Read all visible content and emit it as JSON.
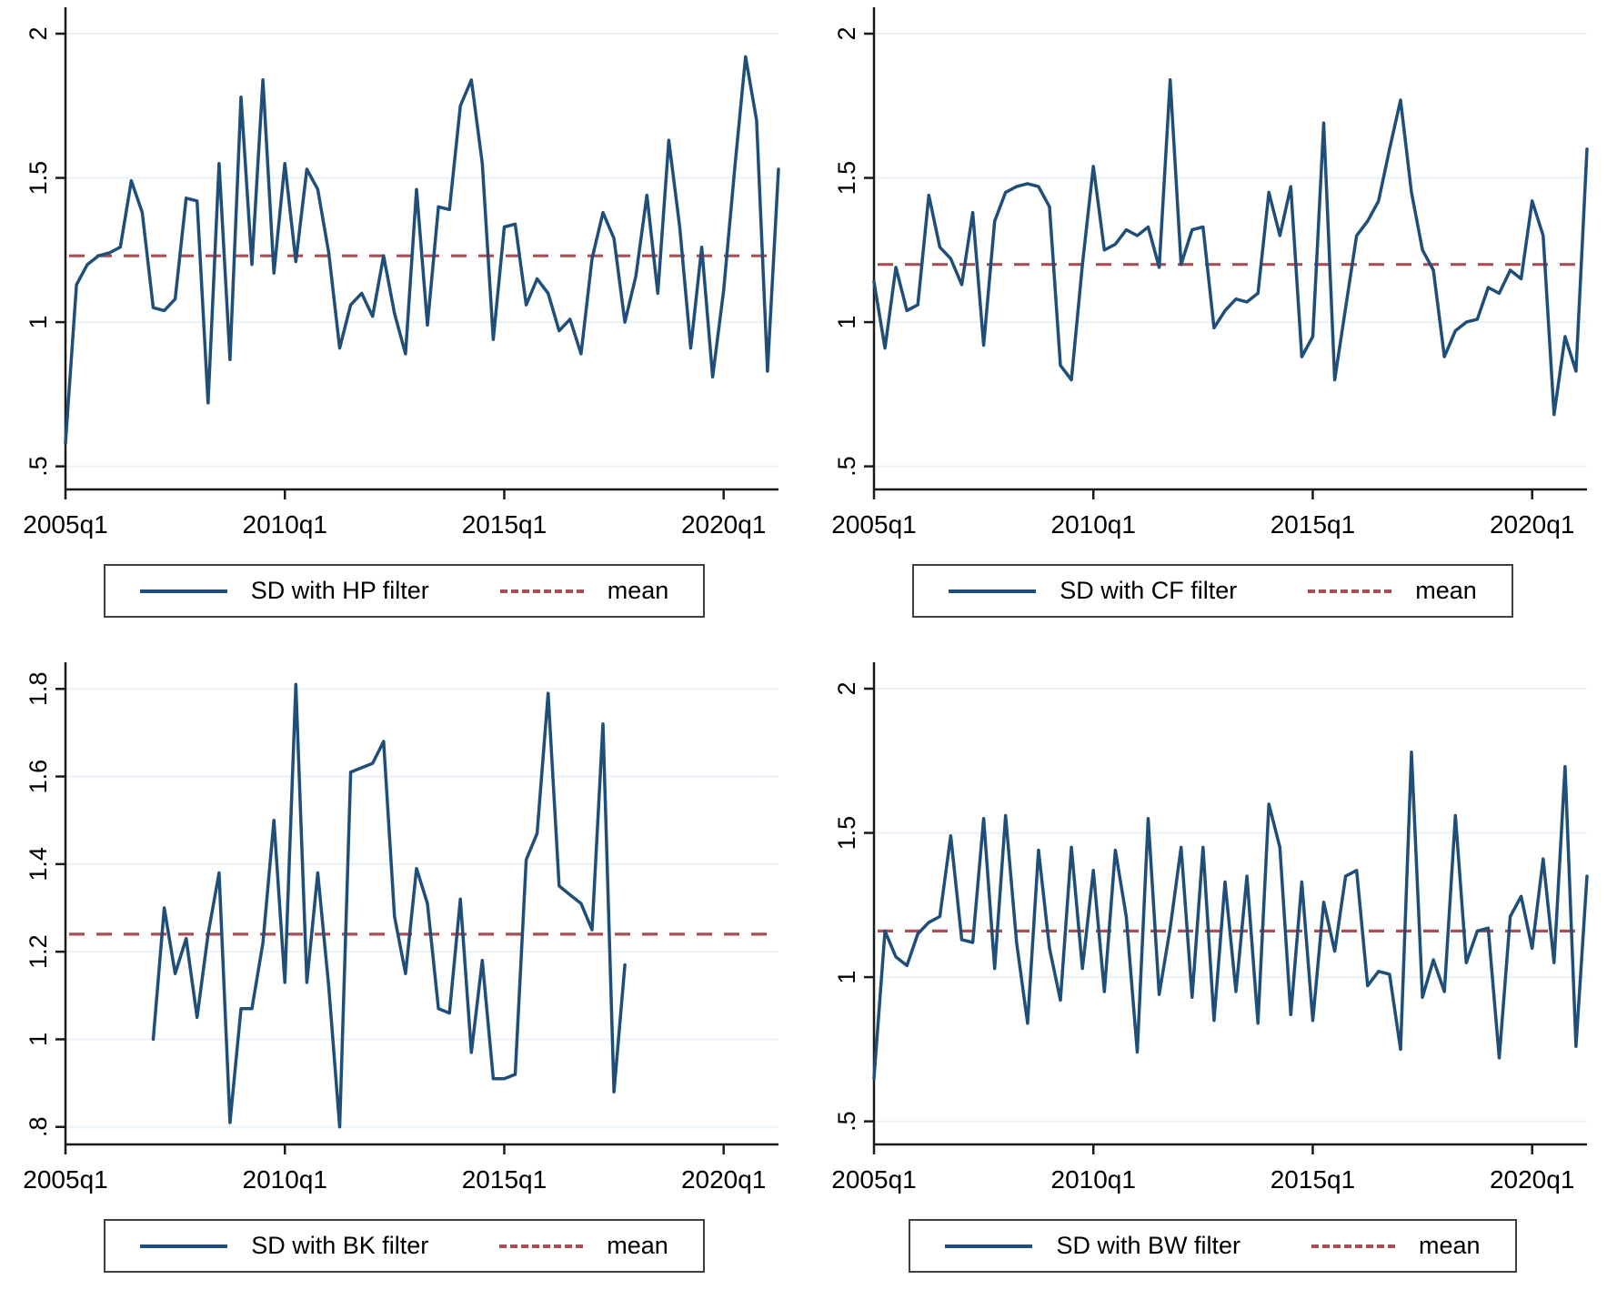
{
  "figure": {
    "background": "#ffffff"
  },
  "colors": {
    "series_line": "#1f4e79",
    "mean_line": "#ab4e54",
    "gridline": "#e9f2f8",
    "axis": "#1a1a1a",
    "tick_text": "#000000",
    "legend_border": "#404040"
  },
  "chart_data": [
    {
      "type": "line",
      "id": "sd-hp-filter",
      "series_label": "SD with HP filter",
      "mean_label": "mean",
      "mean": 1.23,
      "x_tick_labels": [
        "2005q1",
        "2010q1",
        "2015q1",
        "2020q1"
      ],
      "x_tick_quarters": [
        0,
        20,
        40,
        60
      ],
      "x_domain": [
        0,
        65
      ],
      "x_start_quarter": 0,
      "y_ticks": [
        0.5,
        1,
        1.5,
        2
      ],
      "y_tick_labels": [
        ".5",
        "1",
        "1.5",
        "2"
      ],
      "ylim": [
        0.42,
        2.06
      ],
      "values": [
        0.58,
        1.13,
        1.2,
        1.23,
        1.24,
        1.26,
        1.49,
        1.38,
        1.05,
        1.04,
        1.08,
        1.43,
        1.42,
        0.72,
        1.55,
        0.87,
        1.78,
        1.2,
        1.84,
        1.17,
        1.55,
        1.21,
        1.53,
        1.46,
        1.24,
        0.91,
        1.06,
        1.1,
        1.02,
        1.23,
        1.03,
        0.89,
        1.46,
        0.99,
        1.4,
        1.39,
        1.75,
        1.84,
        1.55,
        0.94,
        1.33,
        1.34,
        1.06,
        1.15,
        1.1,
        0.97,
        1.01,
        0.89,
        1.22,
        1.38,
        1.29,
        1.0,
        1.16,
        1.44,
        1.1,
        1.63,
        1.33,
        0.91,
        1.26,
        0.81,
        1.11,
        1.53,
        1.92,
        1.7,
        0.83,
        1.53
      ]
    },
    {
      "type": "line",
      "id": "sd-cf-filter",
      "series_label": "SD with CF filter",
      "mean_label": "mean",
      "mean": 1.2,
      "x_tick_labels": [
        "2005q1",
        "2010q1",
        "2015q1",
        "2020q1"
      ],
      "x_tick_quarters": [
        0,
        20,
        40,
        60
      ],
      "x_domain": [
        0,
        65
      ],
      "x_start_quarter": 0,
      "y_ticks": [
        0.5,
        1,
        1.5,
        2
      ],
      "y_tick_labels": [
        ".5",
        "1",
        "1.5",
        "2"
      ],
      "ylim": [
        0.42,
        2.06
      ],
      "values": [
        1.14,
        0.91,
        1.19,
        1.04,
        1.06,
        1.44,
        1.26,
        1.22,
        1.13,
        1.38,
        0.92,
        1.35,
        1.45,
        1.47,
        1.48,
        1.47,
        1.4,
        0.85,
        0.8,
        1.2,
        1.54,
        1.25,
        1.27,
        1.32,
        1.3,
        1.33,
        1.19,
        1.84,
        1.2,
        1.32,
        1.33,
        0.98,
        1.04,
        1.08,
        1.07,
        1.1,
        1.45,
        1.3,
        1.47,
        0.88,
        0.95,
        1.69,
        0.8,
        1.05,
        1.3,
        1.35,
        1.42,
        1.6,
        1.77,
        1.45,
        1.25,
        1.18,
        0.88,
        0.97,
        1.0,
        1.01,
        1.12,
        1.1,
        1.18,
        1.15,
        1.42,
        1.3,
        0.68,
        0.95,
        0.83,
        1.6
      ]
    },
    {
      "type": "line",
      "id": "sd-bk-filter",
      "series_label": "SD with BK filter",
      "mean_label": "mean",
      "mean": 1.24,
      "x_tick_labels": [
        "2005q1",
        "2010q1",
        "2015q1",
        "2020q1"
      ],
      "x_tick_quarters": [
        0,
        20,
        40,
        60
      ],
      "x_domain": [
        0,
        65
      ],
      "x_start_quarter": 8,
      "y_ticks": [
        0.8,
        1,
        1.2,
        1.4,
        1.6,
        1.8
      ],
      "y_tick_labels": [
        ".8",
        "1",
        "1.2",
        "1.4",
        "1.6",
        "1.8"
      ],
      "ylim": [
        0.76,
        1.84
      ],
      "values": [
        1.0,
        1.3,
        1.15,
        1.23,
        1.05,
        1.24,
        1.38,
        0.81,
        1.07,
        1.07,
        1.22,
        1.5,
        1.13,
        1.81,
        1.13,
        1.38,
        1.12,
        0.8,
        1.61,
        1.62,
        1.63,
        1.68,
        1.28,
        1.15,
        1.39,
        1.31,
        1.07,
        1.06,
        1.32,
        0.97,
        1.18,
        0.91,
        0.91,
        0.92,
        1.41,
        1.47,
        1.79,
        1.35,
        1.33,
        1.31,
        1.25,
        1.72,
        0.88,
        1.17
      ]
    },
    {
      "type": "line",
      "id": "sd-bw-filter",
      "series_label": "SD with BW filter",
      "mean_label": "mean",
      "mean": 1.16,
      "x_tick_labels": [
        "2005q1",
        "2010q1",
        "2015q1",
        "2020q1"
      ],
      "x_tick_quarters": [
        0,
        20,
        40,
        60
      ],
      "x_domain": [
        0,
        65
      ],
      "x_start_quarter": 0,
      "y_ticks": [
        0.5,
        1,
        1.5,
        2
      ],
      "y_tick_labels": [
        ".5",
        "1",
        "1.5",
        "2"
      ],
      "ylim": [
        0.42,
        2.06
      ],
      "values": [
        0.65,
        1.16,
        1.07,
        1.04,
        1.15,
        1.19,
        1.21,
        1.49,
        1.13,
        1.12,
        1.55,
        1.03,
        1.56,
        1.12,
        0.84,
        1.44,
        1.1,
        0.92,
        1.45,
        1.03,
        1.37,
        0.95,
        1.44,
        1.21,
        0.74,
        1.55,
        0.94,
        1.17,
        1.45,
        0.93,
        1.45,
        0.85,
        1.33,
        0.95,
        1.35,
        0.84,
        1.6,
        1.45,
        0.87,
        1.33,
        0.85,
        1.26,
        1.09,
        1.35,
        1.37,
        0.97,
        1.02,
        1.01,
        0.75,
        1.78,
        0.93,
        1.06,
        0.95,
        1.56,
        1.05,
        1.16,
        1.17,
        0.72,
        1.21,
        1.28,
        1.1,
        1.41,
        1.05,
        1.73,
        0.76,
        1.35
      ]
    }
  ]
}
